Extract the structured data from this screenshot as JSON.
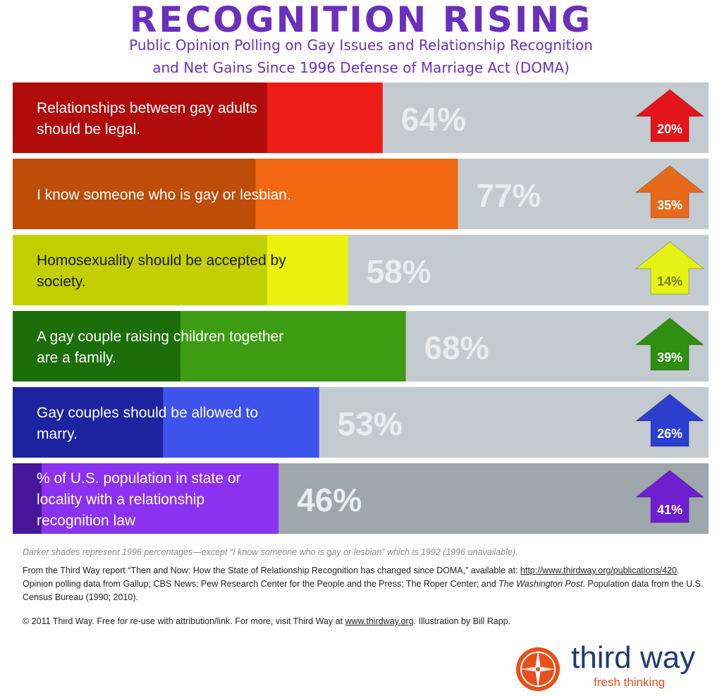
{
  "header": {
    "title": "RECOGNITION RISING",
    "subtitle_line1": "Public Opinion Polling on Gay Issues and Relationship Recognition",
    "subtitle_line2": "and Net Gains Since 1996 Defense of Marriage Act (DOMA)"
  },
  "chart_data": {
    "type": "bar",
    "orientation": "horizontal",
    "xlim": [
      0,
      100
    ],
    "categories": [
      "Relationships between gay adults should be legal.",
      "I know someone who is gay or lesbian.",
      "Homosexuality should be accepted by society.",
      "A gay couple raising children together are a family.",
      "Gay couples should be allowed to marry.",
      "% of U.S. population in state or locality with a relationship recognition law"
    ],
    "series": [
      {
        "values": [
          44,
          42,
          44,
          29,
          26,
          5
        ]
      },
      {
        "values": [
          64,
          77,
          58,
          68,
          53,
          46
        ]
      }
    ],
    "value_labels": [
      "64%",
      "77%",
      "58%",
      "68%",
      "53%",
      "46%"
    ],
    "gains": [
      20,
      35,
      14,
      39,
      26,
      41
    ],
    "gain_labels": [
      "20%",
      "35%",
      "14%",
      "39%",
      "26%",
      "41%"
    ],
    "colors": {
      "dark": [
        "#b00c0c",
        "#bd4d08",
        "#c3cf00",
        "#1b6e09",
        "#1b239e",
        "#47179b"
      ],
      "light": [
        "#ed1c16",
        "#f26711",
        "#ecf20d",
        "#3e9c12",
        "#3e52ec",
        "#8b32f0"
      ],
      "arrow": [
        "#e4141b",
        "#e76a1b",
        "#e6f213",
        "#2f8f10",
        "#2c3fd0",
        "#6f1fd0"
      ],
      "arrow_text": [
        "#ffffff",
        "#ffffff",
        "#7b7b2a",
        "#ffffff",
        "#ffffff",
        "#ffffff"
      ],
      "track": "#c4cbd0",
      "track_last": "#9ea7ac"
    }
  },
  "footnote": "Darker shades represent 1996 percentages—except “I know someone who is gay or lesbian” which is 1992 (1996 unavailable).",
  "source": {
    "text_before": "From the Third Way report “Then and Now: How the State of Relationship Recognition has changed since DOMA,” available at: ",
    "link": "http://www.thirdway.org/publications/420",
    "text_mid": ". Opinion polling data from Gallup; CBS News; Pew Research Center for the People and the Press; The Roper Center; and ",
    "italic": "The Washington Post",
    "text_after": ". Population data from the U.S. Census Bureau (1990; 2010)."
  },
  "copyright": {
    "text_before": "© 2011 Third Way. Free for re-use with attribution/link. For more, visit Third Way at ",
    "link": "www.thirdway.org",
    "text_after": ". Illustration by Bill Rapp."
  },
  "logo": {
    "name": "third way",
    "tagline": "fresh thinking",
    "mark_color": "#e8501b"
  }
}
